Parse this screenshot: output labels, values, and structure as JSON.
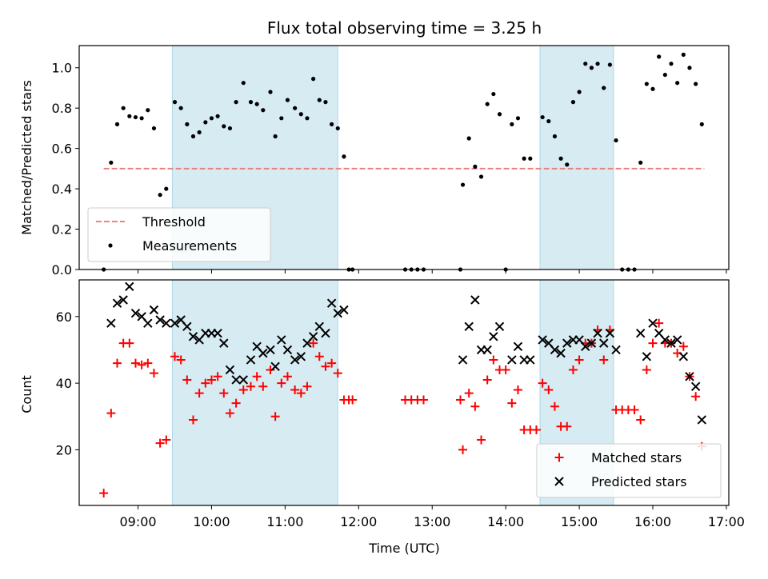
{
  "figure_title": "Flux total observing time = 3.25 h",
  "colors": {
    "shade": "#add8e6",
    "threshold": "#f08080",
    "measurement": "#000000",
    "matched": "#ff0000",
    "predicted": "#000000"
  },
  "chart_data": [
    {
      "type": "scatter",
      "panel": "top",
      "title": "Flux total observing time = 3.25 h",
      "xlabel": "",
      "ylabel": "Matched/Predicted stars",
      "xlim": [
        "08:12",
        "17:02"
      ],
      "ylim": [
        0.0,
        1.11
      ],
      "y_ticks": [
        "0.0",
        "0.2",
        "0.4",
        "0.6",
        "0.8",
        "1.0"
      ],
      "legend_position": "lower-left",
      "shaded_intervals": [
        [
          "09:28",
          "11:43"
        ],
        [
          "14:28",
          "15:28"
        ]
      ],
      "threshold": {
        "name": "Threshold",
        "value": 0.5,
        "x_range": [
          "08:32",
          "16:42"
        ],
        "style": "dashed"
      },
      "series": [
        {
          "name": "Measurements",
          "points": [
            [
              "08:32",
              0.0
            ],
            [
              "08:38",
              0.53
            ],
            [
              "08:43",
              0.72
            ],
            [
              "08:48",
              0.8
            ],
            [
              "08:53",
              0.76
            ],
            [
              "08:58",
              0.755
            ],
            [
              "09:03",
              0.75
            ],
            [
              "09:08",
              0.79
            ],
            [
              "09:13",
              0.7
            ],
            [
              "09:18",
              0.37
            ],
            [
              "09:23",
              0.4
            ],
            [
              "09:30",
              0.83
            ],
            [
              "09:35",
              0.8
            ],
            [
              "09:40",
              0.72
            ],
            [
              "09:45",
              0.66
            ],
            [
              "09:50",
              0.68
            ],
            [
              "09:55",
              0.73
            ],
            [
              "10:00",
              0.75
            ],
            [
              "10:05",
              0.76
            ],
            [
              "10:10",
              0.71
            ],
            [
              "10:15",
              0.7
            ],
            [
              "10:20",
              0.83
            ],
            [
              "10:26",
              0.925
            ],
            [
              "10:32",
              0.83
            ],
            [
              "10:37",
              0.82
            ],
            [
              "10:42",
              0.79
            ],
            [
              "10:48",
              0.88
            ],
            [
              "10:52",
              0.66
            ],
            [
              "10:57",
              0.75
            ],
            [
              "11:02",
              0.84
            ],
            [
              "11:08",
              0.8
            ],
            [
              "11:13",
              0.77
            ],
            [
              "11:18",
              0.75
            ],
            [
              "11:23",
              0.945
            ],
            [
              "11:28",
              0.84
            ],
            [
              "11:33",
              0.83
            ],
            [
              "11:38",
              0.72
            ],
            [
              "11:43",
              0.7
            ],
            [
              "11:48",
              0.56
            ],
            [
              "11:52",
              0.0
            ],
            [
              "11:55",
              0.0
            ],
            [
              "12:38",
              0.0
            ],
            [
              "12:43",
              0.0
            ],
            [
              "12:48",
              0.0
            ],
            [
              "12:53",
              0.0
            ],
            [
              "13:23",
              0.0
            ],
            [
              "13:25",
              0.42
            ],
            [
              "13:30",
              0.65
            ],
            [
              "13:35",
              0.51
            ],
            [
              "13:40",
              0.46
            ],
            [
              "13:45",
              0.82
            ],
            [
              "13:50",
              0.87
            ],
            [
              "13:55",
              0.77
            ],
            [
              "14:00",
              0.0
            ],
            [
              "14:05",
              0.72
            ],
            [
              "14:10",
              0.75
            ],
            [
              "14:15",
              0.55
            ],
            [
              "14:20",
              0.55
            ],
            [
              "14:30",
              0.755
            ],
            [
              "14:35",
              0.735
            ],
            [
              "14:40",
              0.66
            ],
            [
              "14:45",
              0.55
            ],
            [
              "14:50",
              0.52
            ],
            [
              "14:55",
              0.83
            ],
            [
              "15:00",
              0.88
            ],
            [
              "15:05",
              1.02
            ],
            [
              "15:10",
              1.0
            ],
            [
              "15:15",
              1.02
            ],
            [
              "15:20",
              0.9
            ],
            [
              "15:25",
              1.015
            ],
            [
              "15:30",
              0.64
            ],
            [
              "15:35",
              0.0
            ],
            [
              "15:40",
              0.0
            ],
            [
              "15:45",
              0.0
            ],
            [
              "15:50",
              0.53
            ],
            [
              "15:55",
              0.92
            ],
            [
              "16:00",
              0.895
            ],
            [
              "16:05",
              1.055
            ],
            [
              "16:10",
              0.965
            ],
            [
              "16:15",
              1.02
            ],
            [
              "16:20",
              0.925
            ],
            [
              "16:25",
              1.065
            ],
            [
              "16:30",
              1.0
            ],
            [
              "16:35",
              0.92
            ],
            [
              "16:40",
              0.72
            ]
          ]
        }
      ]
    },
    {
      "type": "scatter",
      "panel": "bottom",
      "title": "",
      "xlabel": "Time (UTC)",
      "ylabel": "Count",
      "xlim": [
        "08:12",
        "17:02"
      ],
      "ylim": [
        3.3,
        71.0
      ],
      "y_ticks": [
        "20",
        "40",
        "60"
      ],
      "x_ticks": [
        "09:00",
        "10:00",
        "11:00",
        "12:00",
        "13:00",
        "14:00",
        "15:00",
        "16:00",
        "17:00"
      ],
      "legend_position": "lower-right",
      "shaded_intervals": [
        [
          "09:28",
          "11:43"
        ],
        [
          "14:28",
          "15:28"
        ]
      ],
      "series": [
        {
          "name": "Matched stars",
          "marker": "+",
          "points": [
            [
              "08:32",
              7
            ],
            [
              "08:38",
              31
            ],
            [
              "08:43",
              46
            ],
            [
              "08:48",
              52
            ],
            [
              "08:53",
              52
            ],
            [
              "08:58",
              46
            ],
            [
              "09:03",
              45.5
            ],
            [
              "09:08",
              46
            ],
            [
              "09:13",
              43
            ],
            [
              "09:18",
              22
            ],
            [
              "09:23",
              23
            ],
            [
              "09:30",
              48
            ],
            [
              "09:35",
              47
            ],
            [
              "09:40",
              41
            ],
            [
              "09:45",
              29
            ],
            [
              "09:50",
              37
            ],
            [
              "09:55",
              40
            ],
            [
              "10:00",
              41
            ],
            [
              "10:05",
              42
            ],
            [
              "10:10",
              37
            ],
            [
              "10:15",
              31
            ],
            [
              "10:20",
              34
            ],
            [
              "10:26",
              38
            ],
            [
              "10:32",
              39
            ],
            [
              "10:37",
              42
            ],
            [
              "10:42",
              39
            ],
            [
              "10:48",
              44
            ],
            [
              "10:52",
              30
            ],
            [
              "10:57",
              40
            ],
            [
              "11:02",
              42
            ],
            [
              "11:08",
              38
            ],
            [
              "11:13",
              37
            ],
            [
              "11:18",
              39
            ],
            [
              "11:23",
              52
            ],
            [
              "11:28",
              48
            ],
            [
              "11:33",
              45
            ],
            [
              "11:38",
              46
            ],
            [
              "11:43",
              43
            ],
            [
              "11:48",
              35
            ],
            [
              "11:52",
              35
            ],
            [
              "11:55",
              35
            ],
            [
              "12:38",
              35
            ],
            [
              "12:43",
              35
            ],
            [
              "12:48",
              35
            ],
            [
              "12:53",
              35
            ],
            [
              "13:23",
              35
            ],
            [
              "13:25",
              20
            ],
            [
              "13:30",
              37
            ],
            [
              "13:35",
              33
            ],
            [
              "13:40",
              23
            ],
            [
              "13:45",
              41
            ],
            [
              "13:50",
              47
            ],
            [
              "13:55",
              44
            ],
            [
              "14:00",
              44
            ],
            [
              "14:05",
              34
            ],
            [
              "14:10",
              38
            ],
            [
              "14:15",
              26
            ],
            [
              "14:20",
              26
            ],
            [
              "14:25",
              26
            ],
            [
              "14:30",
              40
            ],
            [
              "14:35",
              38
            ],
            [
              "14:40",
              33
            ],
            [
              "14:45",
              27
            ],
            [
              "14:50",
              27
            ],
            [
              "14:55",
              44
            ],
            [
              "15:00",
              47
            ],
            [
              "15:05",
              52
            ],
            [
              "15:10",
              52
            ],
            [
              "15:15",
              56
            ],
            [
              "15:20",
              47
            ],
            [
              "15:25",
              56
            ],
            [
              "15:30",
              32
            ],
            [
              "15:35",
              32
            ],
            [
              "15:40",
              32
            ],
            [
              "15:45",
              32
            ],
            [
              "15:50",
              29
            ],
            [
              "15:55",
              44
            ],
            [
              "16:00",
              52
            ],
            [
              "16:05",
              58
            ],
            [
              "16:10",
              52
            ],
            [
              "16:15",
              52
            ],
            [
              "16:20",
              49
            ],
            [
              "16:25",
              51
            ],
            [
              "16:30",
              42
            ],
            [
              "16:35",
              36
            ],
            [
              "16:40",
              21
            ]
          ]
        },
        {
          "name": "Predicted stars",
          "marker": "x",
          "points": [
            [
              "08:38",
              58
            ],
            [
              "08:43",
              64
            ],
            [
              "08:48",
              65
            ],
            [
              "08:53",
              69
            ],
            [
              "08:58",
              61
            ],
            [
              "09:03",
              60
            ],
            [
              "09:08",
              58
            ],
            [
              "09:13",
              62
            ],
            [
              "09:18",
              59
            ],
            [
              "09:23",
              58
            ],
            [
              "09:30",
              58
            ],
            [
              "09:35",
              59
            ],
            [
              "09:40",
              57
            ],
            [
              "09:45",
              54
            ],
            [
              "09:50",
              53
            ],
            [
              "09:55",
              55
            ],
            [
              "10:00",
              55
            ],
            [
              "10:05",
              55
            ],
            [
              "10:10",
              52
            ],
            [
              "10:15",
              44
            ],
            [
              "10:20",
              41
            ],
            [
              "10:26",
              41
            ],
            [
              "10:32",
              47
            ],
            [
              "10:37",
              51
            ],
            [
              "10:42",
              49
            ],
            [
              "10:48",
              50
            ],
            [
              "10:52",
              45
            ],
            [
              "10:57",
              53
            ],
            [
              "11:02",
              50
            ],
            [
              "11:08",
              47
            ],
            [
              "11:13",
              48
            ],
            [
              "11:18",
              52
            ],
            [
              "11:23",
              54
            ],
            [
              "11:28",
              57
            ],
            [
              "11:33",
              55
            ],
            [
              "11:38",
              64
            ],
            [
              "11:43",
              61
            ],
            [
              "11:48",
              62
            ],
            [
              "13:25",
              47
            ],
            [
              "13:30",
              57
            ],
            [
              "13:35",
              65
            ],
            [
              "13:40",
              50
            ],
            [
              "13:45",
              50
            ],
            [
              "13:50",
              54
            ],
            [
              "13:55",
              57
            ],
            [
              "14:05",
              47
            ],
            [
              "14:10",
              51
            ],
            [
              "14:15",
              47
            ],
            [
              "14:20",
              47
            ],
            [
              "14:30",
              53
            ],
            [
              "14:35",
              52
            ],
            [
              "14:40",
              50
            ],
            [
              "14:45",
              49
            ],
            [
              "14:50",
              52
            ],
            [
              "14:55",
              53
            ],
            [
              "15:00",
              53
            ],
            [
              "15:05",
              51
            ],
            [
              "15:10",
              52
            ],
            [
              "15:15",
              55
            ],
            [
              "15:20",
              52
            ],
            [
              "15:25",
              55
            ],
            [
              "15:30",
              50
            ],
            [
              "15:50",
              55
            ],
            [
              "15:55",
              48
            ],
            [
              "16:00",
              58
            ],
            [
              "16:05",
              55
            ],
            [
              "16:10",
              53
            ],
            [
              "16:15",
              52
            ],
            [
              "16:20",
              53
            ],
            [
              "16:25",
              48
            ],
            [
              "16:30",
              42
            ],
            [
              "16:35",
              39
            ],
            [
              "16:40",
              29
            ]
          ]
        }
      ]
    }
  ]
}
